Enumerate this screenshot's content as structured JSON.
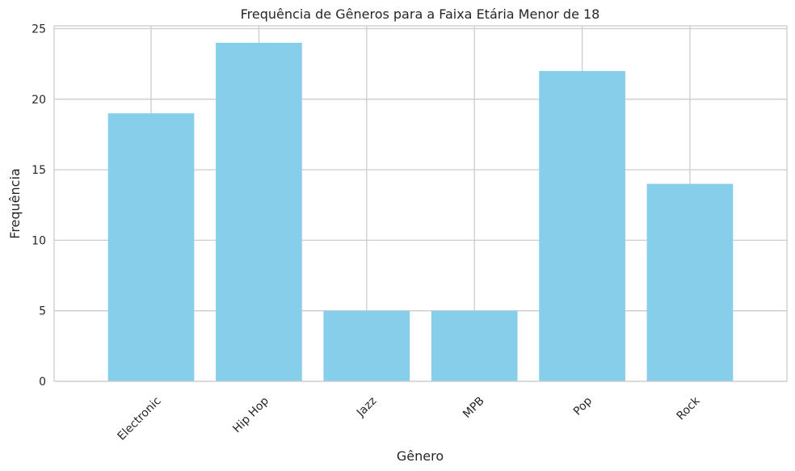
{
  "chart_data": {
    "type": "bar",
    "title": "Frequência de Gêneros para a Faixa Etária Menor de 18",
    "xlabel": "Gênero",
    "ylabel": "Frequência",
    "categories": [
      "Electronic",
      "Hip Hop",
      "Jazz",
      "MPB",
      "Pop",
      "Rock"
    ],
    "values": [
      19,
      24,
      5,
      5,
      22,
      14
    ],
    "ylim": [
      0,
      25.2
    ],
    "yticks": [
      0,
      5,
      10,
      15,
      20,
      25
    ],
    "bar_color": "#87ceeb",
    "grid": true,
    "xtick_rotation": 45
  }
}
